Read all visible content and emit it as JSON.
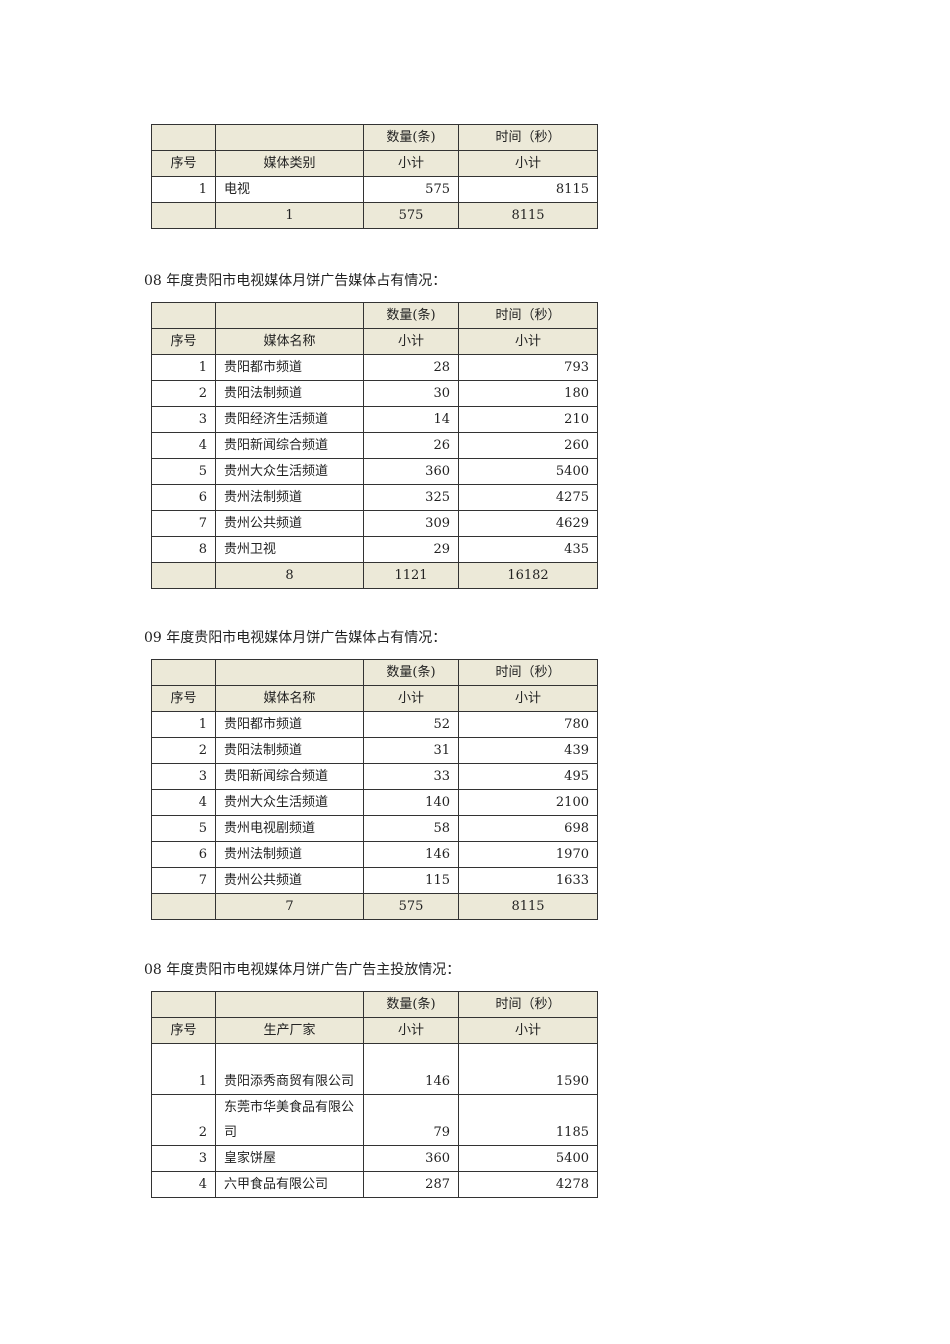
{
  "headers": {
    "count": "数量(条)",
    "time": "时间（秒）",
    "index": "序号",
    "subtotal": "小计"
  },
  "colors": {
    "header_bg": "#ECE9D8"
  },
  "tables": [
    {
      "title": "",
      "name_header": "媒体类别",
      "rows": [
        {
          "no": "1",
          "name": "电视",
          "count": "575",
          "time": "8115"
        }
      ],
      "total": {
        "n": "1",
        "count": "575",
        "time": "8115"
      }
    },
    {
      "title": "08 年度贵阳市电视媒体月饼广告媒体占有情况：",
      "name_header": "媒体名称",
      "rows": [
        {
          "no": "1",
          "name": "贵阳都市频道",
          "count": "28",
          "time": "793"
        },
        {
          "no": "2",
          "name": "贵阳法制频道",
          "count": "30",
          "time": "180"
        },
        {
          "no": "3",
          "name": "贵阳经济生活频道",
          "count": "14",
          "time": "210"
        },
        {
          "no": "4",
          "name": "贵阳新闻综合频道",
          "count": "26",
          "time": "260"
        },
        {
          "no": "5",
          "name": "贵州大众生活频道",
          "count": "360",
          "time": "5400"
        },
        {
          "no": "6",
          "name": "贵州法制频道",
          "count": "325",
          "time": "4275"
        },
        {
          "no": "7",
          "name": "贵州公共频道",
          "count": "309",
          "time": "4629"
        },
        {
          "no": "8",
          "name": "贵州卫视",
          "count": "29",
          "time": "435"
        }
      ],
      "total": {
        "n": "8",
        "count": "1121",
        "time": "16182"
      }
    },
    {
      "title": "09 年度贵阳市电视媒体月饼广告媒体占有情况：",
      "name_header": "媒体名称",
      "rows": [
        {
          "no": "1",
          "name": "贵阳都市频道",
          "count": "52",
          "time": "780"
        },
        {
          "no": "2",
          "name": "贵阳法制频道",
          "count": "31",
          "time": "439"
        },
        {
          "no": "3",
          "name": "贵阳新闻综合频道",
          "count": "33",
          "time": "495"
        },
        {
          "no": "4",
          "name": "贵州大众生活频道",
          "count": "140",
          "time": "2100"
        },
        {
          "no": "5",
          "name": "贵州电视剧频道",
          "count": "58",
          "time": "698"
        },
        {
          "no": "6",
          "name": "贵州法制频道",
          "count": "146",
          "time": "1970"
        },
        {
          "no": "7",
          "name": "贵州公共频道",
          "count": "115",
          "time": "1633"
        }
      ],
      "total": {
        "n": "7",
        "count": "575",
        "time": "8115"
      }
    },
    {
      "title": "08 年度贵阳市电视媒体月饼广告广告主投放情况：",
      "name_header": "生产厂家",
      "rows": [
        {
          "no": "1",
          "name": "贵阳添秀商贸有限公司",
          "count": "146",
          "time": "1590"
        },
        {
          "no": "2",
          "name": "东莞市华美食品有限公司",
          "count": "79",
          "time": "1185"
        },
        {
          "no": "3",
          "name": "皇家饼屋",
          "count": "360",
          "time": "5400"
        },
        {
          "no": "4",
          "name": "六甲食品有限公司",
          "count": "287",
          "time": "4278"
        }
      ]
    }
  ]
}
